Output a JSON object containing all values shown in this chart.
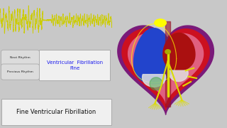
{
  "bg_color": "#000000",
  "ecg_color": "#cccc00",
  "panel_bg": "#c8c8c8",
  "title_box_text": "Ventricular  Fibrillation\nFine",
  "bottom_label": "Fine Ventricular Fibrillation",
  "btn1": "Next Rhythm",
  "btn2": "Previous Rhythm",
  "ecg_ylim": [
    -0.8,
    1.2
  ],
  "ecg_xlim": [
    0,
    10
  ],
  "heart_outer_color": "#7a1a7a",
  "heart_body_color": "#cc1020",
  "heart_pink_color": "#e06080",
  "heart_left_color": "#2244cc",
  "heart_right_color": "#aa1010",
  "sa_node_color": "#ffff00",
  "av_node_color": "#aaaa00",
  "conduction_color": "#dddd00",
  "white_valve": "#e0e0e0",
  "panel_light": "#dcdcdc"
}
